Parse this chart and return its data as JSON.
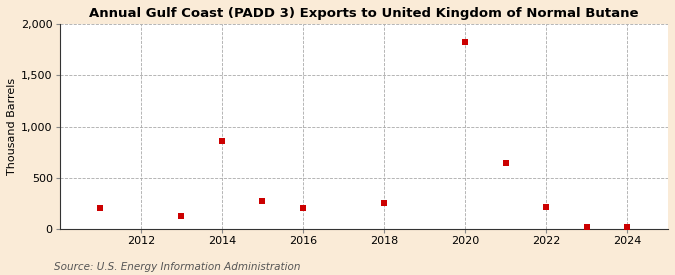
{
  "title": "Annual Gulf Coast (PADD 3) Exports to United Kingdom of Normal Butane",
  "ylabel": "Thousand Barrels",
  "source": "Source: U.S. Energy Information Administration",
  "background_color": "#faebd7",
  "plot_background_color": "#ffffff",
  "marker_color": "#cc0000",
  "x_values": [
    2011,
    2013,
    2014,
    2015,
    2016,
    2018,
    2020,
    2021,
    2022,
    2023,
    2024
  ],
  "y_values": [
    205,
    130,
    855,
    275,
    210,
    255,
    1820,
    645,
    215,
    20,
    18
  ],
  "xlim": [
    2010.0,
    2025.0
  ],
  "ylim": [
    0,
    2000
  ],
  "yticks": [
    0,
    500,
    1000,
    1500,
    2000
  ],
  "xticks": [
    2012,
    2014,
    2016,
    2018,
    2020,
    2022,
    2024
  ],
  "title_fontsize": 9.5,
  "label_fontsize": 8,
  "tick_fontsize": 8,
  "source_fontsize": 7.5,
  "figsize": [
    6.75,
    2.75
  ],
  "dpi": 100
}
